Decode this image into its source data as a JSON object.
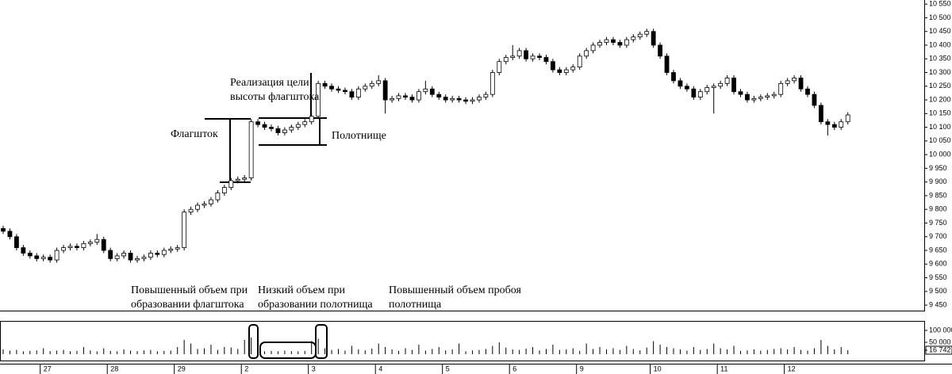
{
  "chart_data": {
    "type": "candlestick",
    "categories": [
      null,
      null,
      null,
      null,
      null,
      null,
      "27",
      null,
      null,
      null,
      null,
      null,
      null,
      null,
      null,
      null,
      "28",
      null,
      null,
      null,
      null,
      null,
      null,
      null,
      null,
      null,
      "29",
      null,
      null,
      null,
      null,
      null,
      null,
      null,
      null,
      null,
      "2",
      null,
      null,
      null,
      null,
      null,
      null,
      null,
      null,
      null,
      "3",
      null,
      null,
      null,
      null,
      null,
      null,
      null,
      null,
      null,
      "4",
      null,
      null,
      null,
      null,
      null,
      null,
      null,
      null,
      null,
      "5",
      null,
      null,
      null,
      null,
      null,
      null,
      null,
      null,
      null,
      "6",
      null,
      null,
      null,
      null,
      null,
      null,
      null,
      null,
      null,
      "9",
      null,
      null,
      null,
      null,
      null,
      null,
      null,
      null,
      null,
      null,
      "10",
      null,
      null,
      null,
      null,
      null,
      null,
      null,
      null,
      null,
      "11",
      null,
      null,
      null,
      null,
      null,
      null,
      null,
      null,
      null,
      "12",
      null,
      null,
      null,
      null,
      null,
      null,
      null,
      null,
      null
    ],
    "open": [
      9730,
      9720,
      9700,
      9660,
      9640,
      9630,
      9620,
      9625,
      9615,
      9650,
      9660,
      9665,
      9660,
      9675,
      9680,
      9690,
      9650,
      9620,
      9630,
      9640,
      9615,
      9620,
      9625,
      9640,
      9635,
      9650,
      9655,
      9660,
      9790,
      9800,
      9815,
      9820,
      9835,
      9860,
      9880,
      9905,
      9910,
      9915,
      10120,
      10110,
      10100,
      10095,
      10080,
      10090,
      10100,
      10110,
      10120,
      10140,
      10260,
      10250,
      10240,
      10235,
      10230,
      10210,
      10240,
      10250,
      10260,
      10270,
      10200,
      10205,
      10215,
      10210,
      10200,
      10230,
      10240,
      10220,
      10210,
      10200,
      10205,
      10200,
      10195,
      10200,
      10210,
      10220,
      10300,
      10340,
      10355,
      10360,
      10380,
      10350,
      10360,
      10355,
      10340,
      10310,
      10300,
      10310,
      10320,
      10360,
      10380,
      10400,
      10410,
      10420,
      10410,
      10400,
      10420,
      10430,
      10440,
      10450,
      10400,
      10360,
      10300,
      10270,
      10250,
      10240,
      10210,
      10230,
      10245,
      10250,
      10260,
      10280,
      10230,
      10220,
      10200,
      10205,
      10210,
      10215,
      10220,
      10260,
      10270,
      10280,
      10240,
      10220,
      10180,
      10120,
      10110,
      10100,
      10120
    ],
    "high": [
      9740,
      9730,
      9710,
      9670,
      9650,
      9640,
      9635,
      9635,
      9660,
      9670,
      9675,
      9675,
      9685,
      9690,
      9710,
      9700,
      9660,
      9640,
      9650,
      9650,
      9630,
      9635,
      9650,
      9650,
      9660,
      9665,
      9670,
      9800,
      9810,
      9825,
      9830,
      9845,
      9870,
      9890,
      9915,
      9920,
      9925,
      10130,
      10130,
      10120,
      10110,
      10105,
      10100,
      10110,
      10120,
      10130,
      10150,
      10270,
      10270,
      10260,
      10250,
      10245,
      10240,
      10250,
      10260,
      10270,
      10290,
      10280,
      10215,
      10225,
      10225,
      10220,
      10240,
      10270,
      10250,
      10230,
      10220,
      10215,
      10215,
      10210,
      10210,
      10220,
      10230,
      10310,
      10350,
      10365,
      10400,
      10390,
      10390,
      10370,
      10370,
      10365,
      10350,
      10320,
      10320,
      10330,
      10370,
      10390,
      10410,
      10420,
      10430,
      10430,
      10420,
      10430,
      10440,
      10450,
      10460,
      10460,
      10410,
      10370,
      10310,
      10280,
      10260,
      10250,
      10240,
      10255,
      10260,
      10270,
      10290,
      10290,
      10240,
      10230,
      10215,
      10220,
      10225,
      10230,
      10270,
      10280,
      10290,
      10290,
      10250,
      10230,
      10190,
      10130,
      10120,
      10130,
      10155
    ],
    "low": [
      9710,
      9690,
      9650,
      9630,
      9620,
      9610,
      9610,
      9605,
      9605,
      9640,
      9650,
      9650,
      9650,
      9665,
      9670,
      9640,
      9610,
      9610,
      9620,
      9605,
      9605,
      9610,
      9615,
      9625,
      9625,
      9640,
      9645,
      9650,
      9780,
      9790,
      9805,
      9810,
      9825,
      9850,
      9870,
      9895,
      9900,
      9905,
      10100,
      10090,
      10085,
      10070,
      10070,
      10080,
      10090,
      10100,
      10110,
      10130,
      10240,
      10230,
      10225,
      10220,
      10200,
      10200,
      10230,
      10240,
      10250,
      10150,
      10190,
      10195,
      10200,
      10190,
      10190,
      10220,
      10210,
      10200,
      10190,
      10190,
      10190,
      10185,
      10185,
      10190,
      10200,
      10210,
      10290,
      10330,
      10345,
      10350,
      10340,
      10340,
      10345,
      10330,
      10300,
      10290,
      10290,
      10300,
      10310,
      10350,
      10370,
      10390,
      10400,
      10400,
      10390,
      10390,
      10410,
      10420,
      10430,
      10390,
      10350,
      10290,
      10260,
      10240,
      10230,
      10200,
      10200,
      10220,
      10150,
      10240,
      10250,
      10220,
      10210,
      10190,
      10190,
      10195,
      10200,
      10205,
      10210,
      10250,
      10260,
      10230,
      10210,
      10170,
      10110,
      10070,
      10090,
      10090,
      10110
    ],
    "close": [
      9720,
      9700,
      9660,
      9640,
      9630,
      9620,
      9625,
      9615,
      9650,
      9660,
      9665,
      9660,
      9675,
      9680,
      9690,
      9650,
      9620,
      9630,
      9640,
      9615,
      9620,
      9625,
      9640,
      9635,
      9650,
      9655,
      9660,
      9790,
      9800,
      9815,
      9820,
      9835,
      9860,
      9880,
      9905,
      9910,
      9915,
      10120,
      10110,
      10100,
      10095,
      10080,
      10090,
      10100,
      10110,
      10120,
      10140,
      10260,
      10250,
      10240,
      10235,
      10230,
      10210,
      10240,
      10250,
      10260,
      10270,
      10200,
      10205,
      10215,
      10210,
      10200,
      10230,
      10240,
      10220,
      10210,
      10200,
      10205,
      10200,
      10195,
      10200,
      10210,
      10220,
      10300,
      10340,
      10355,
      10360,
      10380,
      10350,
      10360,
      10355,
      10340,
      10310,
      10300,
      10310,
      10320,
      10360,
      10380,
      10400,
      10410,
      10420,
      10410,
      10400,
      10420,
      10430,
      10440,
      10450,
      10400,
      10360,
      10300,
      10270,
      10250,
      10240,
      10210,
      10230,
      10245,
      10250,
      10260,
      10280,
      10230,
      10220,
      10200,
      10205,
      10210,
      10215,
      10220,
      10260,
      10270,
      10280,
      10240,
      10220,
      10180,
      10120,
      10110,
      10100,
      10120,
      10145
    ],
    "ylim": [
      9430,
      10565
    ],
    "yticks": [
      {
        "value": 9450,
        "label": "9 450"
      },
      {
        "value": 9500,
        "label": "9 500"
      },
      {
        "value": 9550,
        "label": "9 550"
      },
      {
        "value": 9600,
        "label": "9 600"
      },
      {
        "value": 9650,
        "label": "9 650"
      },
      {
        "value": 9700,
        "label": "9 700"
      },
      {
        "value": 9750,
        "label": "9 750"
      },
      {
        "value": 9800,
        "label": "9 800"
      },
      {
        "value": 9850,
        "label": "9 850"
      },
      {
        "value": 9900,
        "label": "9 900"
      },
      {
        "value": 9950,
        "label": "9 950"
      },
      {
        "value": 10000,
        "label": "10 000"
      },
      {
        "value": 10050,
        "label": "10 050"
      },
      {
        "value": 10100,
        "label": "10 100"
      },
      {
        "value": 10150,
        "label": "10 150"
      },
      {
        "value": 10200,
        "label": "10 200"
      },
      {
        "value": 10250,
        "label": "10 250"
      },
      {
        "value": 10300,
        "label": "10 300"
      },
      {
        "value": 10350,
        "label": "10 350"
      },
      {
        "value": 10400,
        "label": "10 400"
      },
      {
        "value": 10450,
        "label": "10 450"
      },
      {
        "value": 10500,
        "label": "10 500"
      },
      {
        "value": 10550,
        "label": "10 550"
      }
    ],
    "volume": {
      "values": [
        20000,
        15000,
        18000,
        12000,
        14000,
        16000,
        25000,
        13000,
        15000,
        18000,
        12000,
        14000,
        30000,
        16000,
        12000,
        25000,
        14000,
        12000,
        20000,
        15000,
        13000,
        16000,
        18000,
        12000,
        14000,
        15000,
        30000,
        60000,
        45000,
        22000,
        25000,
        40000,
        18000,
        30000,
        28000,
        22000,
        60000,
        70000,
        20000,
        12000,
        14000,
        12000,
        15000,
        13000,
        12000,
        14000,
        55000,
        65000,
        25000,
        18000,
        22000,
        15000,
        35000,
        20000,
        16000,
        24000,
        45000,
        30000,
        20000,
        14000,
        25000,
        18000,
        40000,
        15000,
        22000,
        30000,
        16000,
        20000,
        45000,
        12000,
        16000,
        18000,
        22000,
        35000,
        50000,
        28000,
        20000,
        18000,
        24000,
        30000,
        16000,
        22000,
        40000,
        18000,
        20000,
        25000,
        14000,
        45000,
        22000,
        30000,
        20000,
        25000,
        18000,
        35000,
        22000,
        16000,
        28000,
        55000,
        40000,
        30000,
        25000,
        20000,
        15000,
        30000,
        18000,
        22000,
        45000,
        25000,
        20000,
        35000,
        14000,
        16000,
        20000,
        15000,
        18000,
        22000,
        25000,
        20000,
        30000,
        18000,
        15000,
        25000,
        60000,
        35000,
        20000,
        30000,
        16742
      ],
      "ylim": [
        0,
        130000
      ],
      "yticks": [
        {
          "value": 100000,
          "label": "100 000"
        },
        {
          "value": 50000,
          "label": "50 000"
        },
        {
          "value": 16742,
          "label": "16 742"
        }
      ]
    },
    "annotations": [
      {
        "lines": [
          "Реализация цели",
          "высоты флагштока"
        ]
      },
      {
        "lines": [
          "Флагшток"
        ]
      },
      {
        "lines": [
          "Полотнище"
        ]
      },
      {
        "lines": [
          "Повышенный объем при",
          "образовании флагштока"
        ]
      },
      {
        "lines": [
          "Низкий объем при",
          "образовании полотнища"
        ]
      },
      {
        "lines": [
          "Повышенный объем пробоя",
          "полотнища"
        ]
      }
    ]
  }
}
